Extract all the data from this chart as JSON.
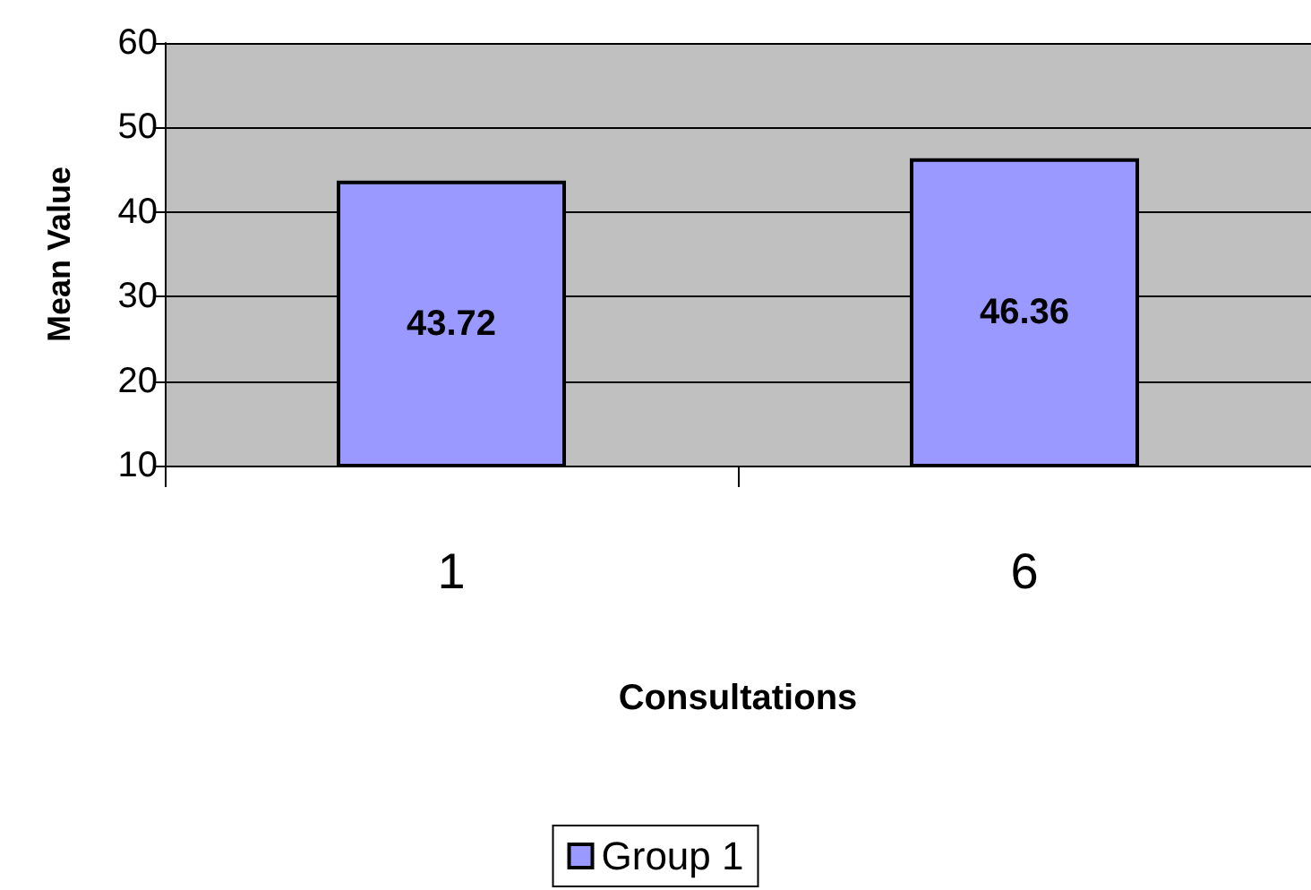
{
  "chart_data": {
    "type": "bar",
    "xlabel": "Consultations",
    "ylabel": "Mean Value",
    "categories": [
      "1",
      "6"
    ],
    "series": [
      {
        "name": "Group 1",
        "color": "#9999ff",
        "values": [
          43.72,
          46.36
        ]
      }
    ],
    "ylim": [
      10,
      60
    ],
    "yticks": [
      10,
      20,
      30,
      40,
      50,
      60
    ],
    "grid": "y",
    "legend": "bottom",
    "data_labels": true
  }
}
